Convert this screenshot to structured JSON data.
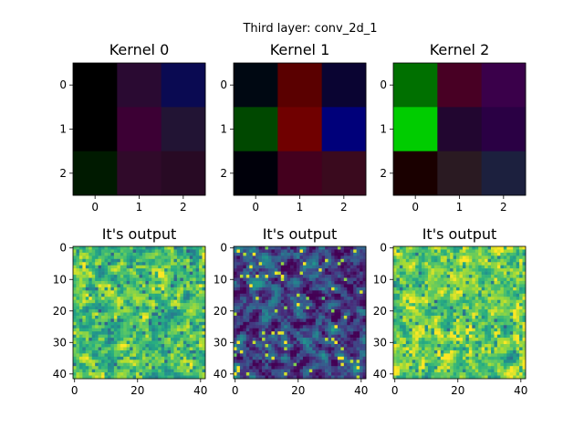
{
  "figure": {
    "suptitle": "Third layer: conv_2d_1"
  },
  "chart_data": [
    {
      "type": "heatmap",
      "title": "Kernel 0",
      "xticks": [
        "0",
        "1",
        "2"
      ],
      "yticks": [
        "0",
        "1",
        "2"
      ],
      "cells": [
        [
          "#000000",
          "#2a0a32",
          "#0a0a52"
        ],
        [
          "#000000",
          "#3c0034",
          "#221434"
        ],
        [
          "#001a00",
          "#300a2a",
          "#280a24"
        ]
      ]
    },
    {
      "type": "heatmap",
      "title": "Kernel 1",
      "xticks": [
        "0",
        "1",
        "2"
      ],
      "yticks": [
        "0",
        "1",
        "2"
      ],
      "cells": [
        [
          "#000812",
          "#5a0000",
          "#0a0432"
        ],
        [
          "#004800",
          "#700000",
          "#00007a"
        ],
        [
          "#00000a",
          "#44001e",
          "#3a0a1e"
        ]
      ]
    },
    {
      "type": "heatmap",
      "title": "Kernel 2",
      "xticks": [
        "0",
        "1",
        "2"
      ],
      "yticks": [
        "0",
        "1",
        "2"
      ],
      "cells": [
        [
          "#007000",
          "#480024",
          "#3a004a"
        ],
        [
          "#00cc00",
          "#220630",
          "#2a0044"
        ],
        [
          "#1a0000",
          "#2a1a22",
          "#1c203e"
        ]
      ]
    },
    {
      "type": "heatmap",
      "title": "It's output",
      "colormap": "viridis",
      "size": [
        42,
        42
      ],
      "xticks": [
        "0",
        "20",
        "40"
      ],
      "yticks": [
        "0",
        "10",
        "20",
        "30",
        "40"
      ],
      "value_range": [
        0,
        1
      ],
      "mean_level": 0.72,
      "seed": 11
    },
    {
      "type": "heatmap",
      "title": "It's output",
      "colormap": "viridis",
      "size": [
        42,
        42
      ],
      "xticks": [
        "0",
        "20",
        "40"
      ],
      "yticks": [
        "0",
        "10",
        "20",
        "30",
        "40"
      ],
      "value_range": [
        0,
        1
      ],
      "mean_level": 0.22,
      "seed": 29
    },
    {
      "type": "heatmap",
      "title": "It's output",
      "colormap": "viridis",
      "size": [
        42,
        42
      ],
      "xticks": [
        "0",
        "20",
        "40"
      ],
      "yticks": [
        "0",
        "10",
        "20",
        "30",
        "40"
      ],
      "value_range": [
        0,
        1
      ],
      "mean_level": 0.8,
      "seed": 47
    }
  ]
}
